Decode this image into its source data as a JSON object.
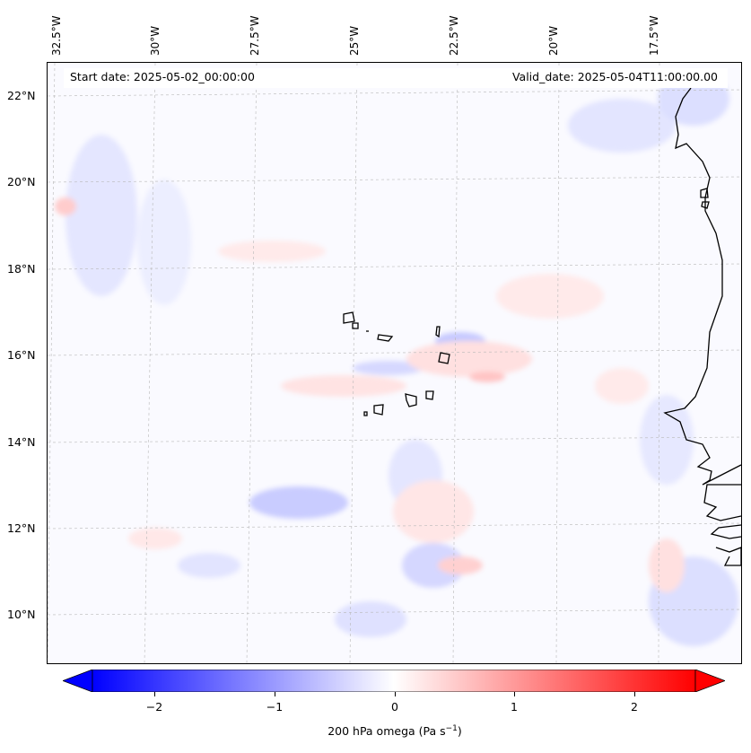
{
  "header": {
    "start_date": "Start date: 2025-05-02_00:00:00",
    "valid_date": "Valid_date: 2025-05-04T11:00:00.00"
  },
  "map": {
    "longitude_labels": [
      "32.5°W",
      "30°W",
      "27.5°W",
      "25°W",
      "22.5°W",
      "20°W",
      "17.5°W"
    ],
    "latitude_labels": [
      "22°N",
      "20°N",
      "18°N",
      "16°N",
      "14°N",
      "12°N",
      "10°N"
    ],
    "variable_levels": "200 hPa omega field",
    "colors": {
      "negative": "#0000ff",
      "positive": "#ff0000",
      "neutral": "#ffffff",
      "coastline": "#000000"
    }
  },
  "colorbar": {
    "ticks": [
      "−2",
      "−1",
      "0",
      "1",
      "2"
    ],
    "label": "200 hPa omega (Pa s",
    "label_exp": "−1",
    "label_close": ")",
    "range": [
      -2.7,
      2.7
    ]
  }
}
